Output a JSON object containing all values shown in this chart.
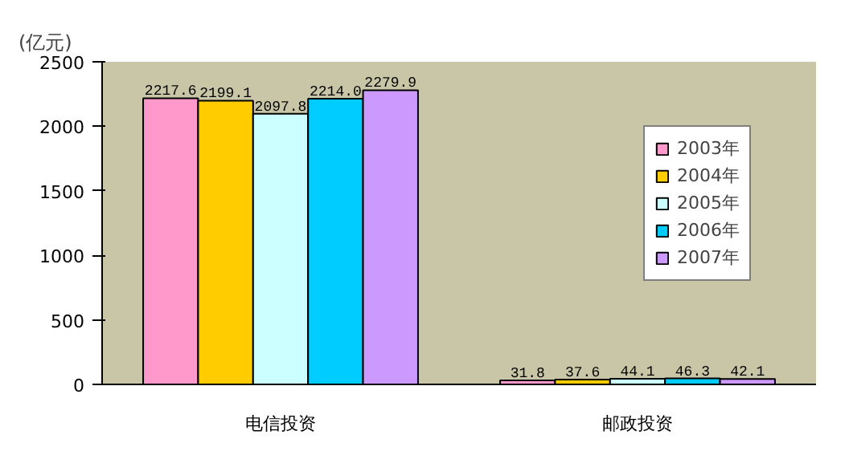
{
  "chart_data": {
    "type": "bar",
    "ylabel": "(亿元)",
    "categories": [
      "电信投资",
      "邮政投资"
    ],
    "series": [
      {
        "name": "2003年",
        "color": "#ff99cc",
        "values": [
          2217.6,
          31.8
        ]
      },
      {
        "name": "2004年",
        "color": "#ffcc00",
        "values": [
          2199.1,
          37.6
        ]
      },
      {
        "name": "2005年",
        "color": "#ccffff",
        "values": [
          2097.8,
          44.1
        ]
      },
      {
        "name": "2006年",
        "color": "#00ccff",
        "values": [
          2214.0,
          46.3
        ],
        "value_labels": [
          "2214.0",
          "46.3"
        ]
      },
      {
        "name": "2007年",
        "color": "#cc99ff",
        "values": [
          2279.9,
          42.1
        ]
      }
    ],
    "ylim": [
      0,
      2500
    ],
    "yticks": [
      0,
      500,
      1000,
      1500,
      2000,
      2500
    ],
    "data_labels": true,
    "grid": false,
    "legend": "top right"
  }
}
